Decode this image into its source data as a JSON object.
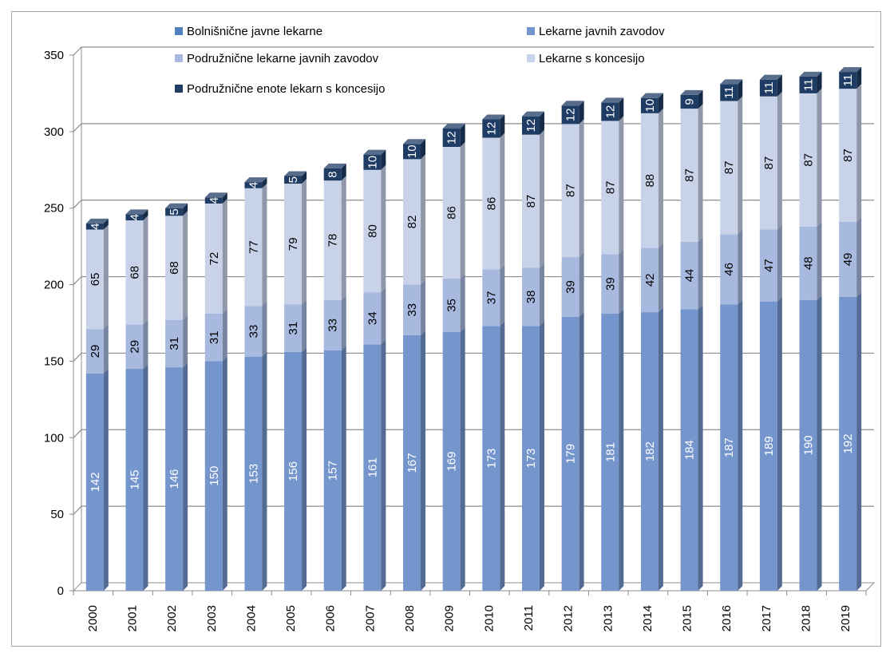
{
  "chart_data": {
    "type": "bar",
    "stacked": true,
    "style": "3d-column",
    "categories": [
      "2000",
      "2001",
      "2002",
      "2003",
      "2004",
      "2005",
      "2006",
      "2007",
      "2008",
      "2009",
      "2010",
      "2011",
      "2012",
      "2013",
      "2014",
      "2015",
      "2016",
      "2017",
      "2018",
      "2019"
    ],
    "ylim": [
      0,
      350
    ],
    "yticks": [
      0,
      50,
      100,
      150,
      200,
      250,
      300,
      350
    ],
    "grid": true,
    "legend_position": "top",
    "title": "",
    "xlabel": "",
    "ylabel": "",
    "series": [
      {
        "name": "Bolnišnične javne lekarne",
        "color": "#4f81bd",
        "values": [
          0,
          0,
          0,
          0,
          0,
          0,
          0,
          0,
          0,
          0,
          0,
          0,
          0,
          0,
          0,
          0,
          0,
          0,
          0,
          0
        ]
      },
      {
        "name": "Lekarne javnih zavodov",
        "color": "#7596cd",
        "label_color": "#ffffff",
        "values": [
          142,
          145,
          146,
          150,
          153,
          156,
          157,
          161,
          167,
          169,
          173,
          173,
          179,
          181,
          182,
          184,
          187,
          189,
          190,
          192
        ]
      },
      {
        "name": "Podružnične lekarne javnih zavodov",
        "color": "#a7b9de",
        "label_color": "#000000",
        "values": [
          29,
          29,
          31,
          31,
          33,
          31,
          33,
          34,
          33,
          35,
          37,
          38,
          39,
          39,
          42,
          44,
          46,
          47,
          48,
          49
        ]
      },
      {
        "name": "Lekarne s koncesijo",
        "color": "#c8d2e9",
        "label_color": "#000000",
        "values": [
          65,
          68,
          68,
          72,
          77,
          79,
          78,
          80,
          82,
          86,
          86,
          87,
          87,
          87,
          88,
          87,
          87,
          87,
          87,
          87
        ]
      },
      {
        "name": "Podružnične enote lekarn s koncesijo",
        "color": "#1f3c64",
        "label_color": "#ffffff",
        "values": [
          4,
          4,
          5,
          4,
          4,
          5,
          8,
          10,
          10,
          12,
          12,
          12,
          12,
          12,
          10,
          9,
          11,
          11,
          11,
          11
        ]
      }
    ]
  }
}
